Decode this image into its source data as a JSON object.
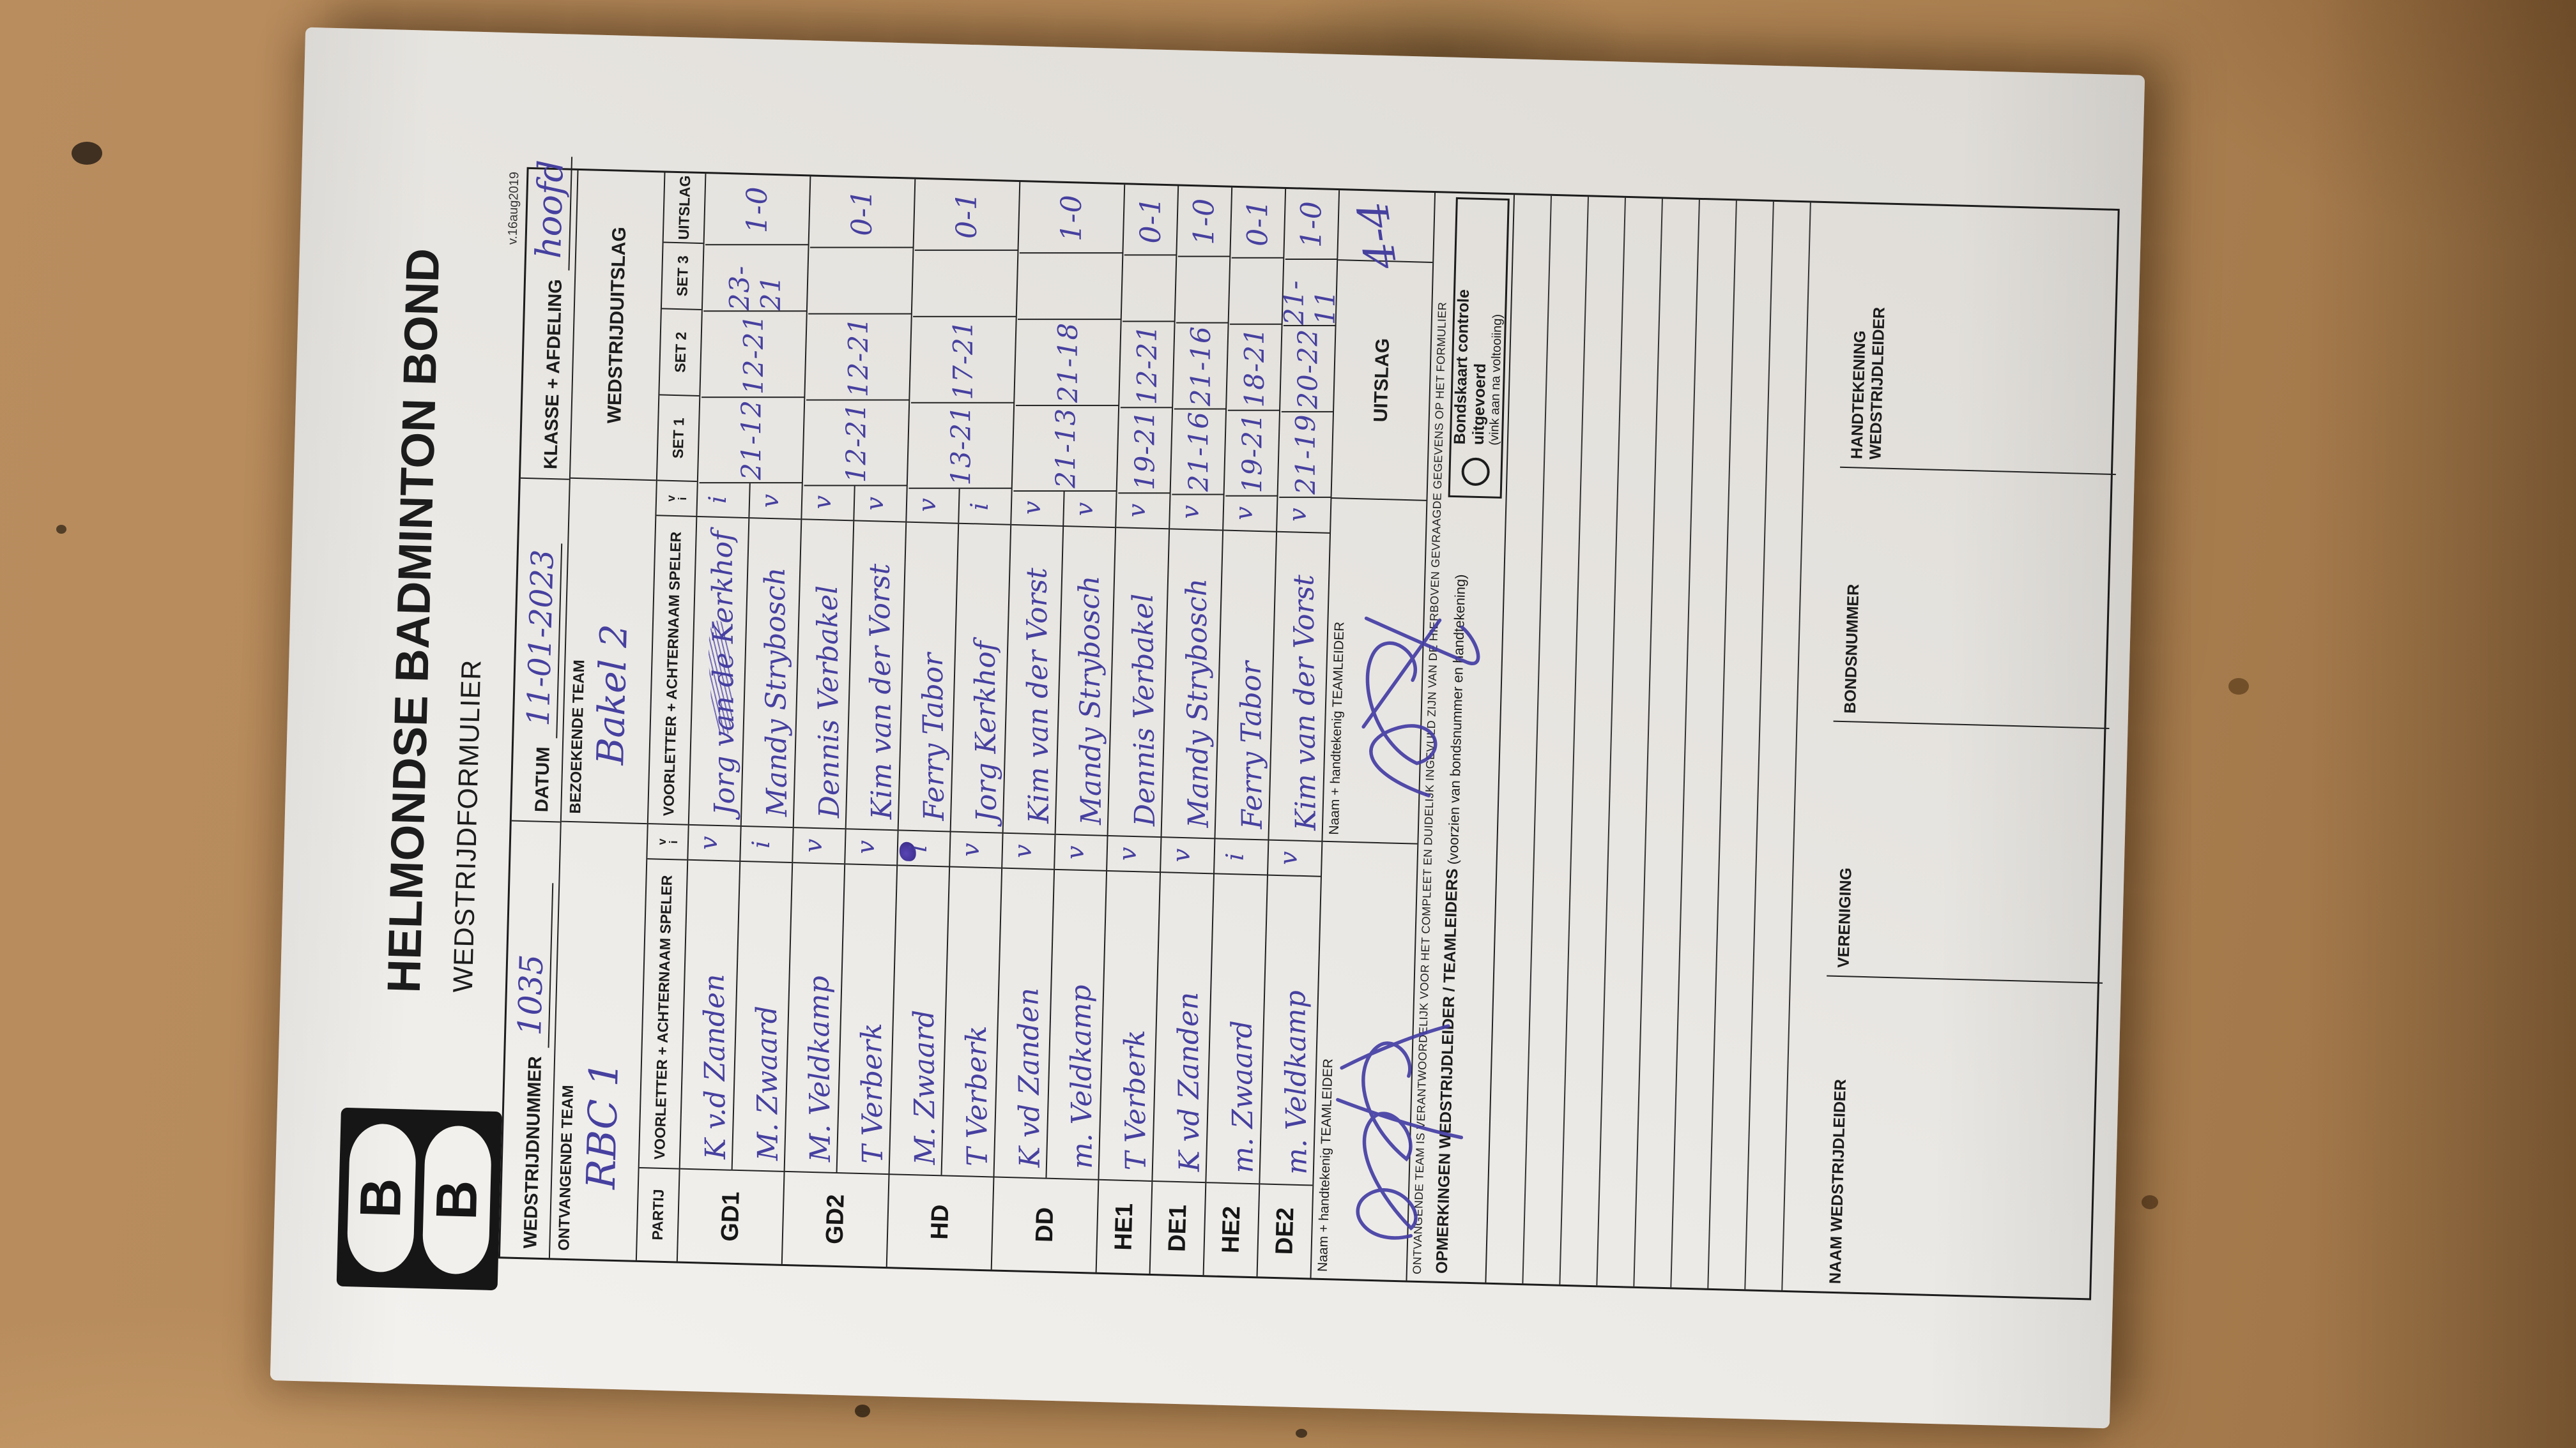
{
  "form": {
    "header": {
      "title": "HELMONDSE BADMINTON BOND",
      "subtitle": "WEDSTRIJDFORMULIER",
      "version": "v.16aug2019",
      "logo_letters": [
        "B",
        "B"
      ]
    },
    "fields": {
      "wedstrijdnummer_label": "WEDSTRIJDNUMMER",
      "wedstrijdnummer_value": "1035",
      "datum_label": "DATUM",
      "datum_value": "11-01-2023",
      "klasse_label": "KLASSE + AFDELING",
      "klasse_value": "hoofd"
    },
    "teams": {
      "home_label": "ONTVANGENDE TEAM",
      "home_value": "RBC 1",
      "away_label": "BEZOEKENDE TEAM",
      "away_value": "Bakel 2",
      "result_header": "WEDSTRIJDUITSLAG"
    },
    "table": {
      "partij_label": "PARTIJ",
      "player_label": "VOORLETTER + ACHTERNAAM SPELER",
      "check_options": [
        "v",
        "i"
      ],
      "set_labels": [
        "SET 1",
        "SET 2",
        "SET 3"
      ],
      "uitslag_label": "UITSLAG",
      "rows": [
        {
          "partij": "GD1",
          "home": [
            {
              "name": "K v.d Zanden",
              "check": "v"
            },
            {
              "name": "M. Zwaard",
              "check": "i"
            }
          ],
          "guest": [
            {
              "name": "Jorg van de Kerkhof",
              "check": "i",
              "corrected": true
            },
            {
              "name": "Mandy Strybosch",
              "check": "v"
            }
          ],
          "sets": [
            "21-12",
            "12-21",
            "23-21"
          ],
          "uitslag": "1-0"
        },
        {
          "partij": "GD2",
          "home": [
            {
              "name": "M. Veldkamp",
              "check": "v"
            },
            {
              "name": "T Verberk",
              "check": "v"
            }
          ],
          "guest": [
            {
              "name": "Dennis Verbakel",
              "check": "v"
            },
            {
              "name": "Kim van der Vorst",
              "check": "v"
            }
          ],
          "sets": [
            "12-21",
            "12-21",
            ""
          ],
          "uitslag": "0-1"
        },
        {
          "partij": "HD",
          "home": [
            {
              "name": "M. Zwaard",
              "check": "i",
              "blob": true
            },
            {
              "name": "T Verberk",
              "check": "v"
            }
          ],
          "guest": [
            {
              "name": "Ferry Tabor",
              "check": "v"
            },
            {
              "name": "Jorg Kerkhof",
              "check": "i"
            }
          ],
          "sets": [
            "13-21",
            "17-21",
            ""
          ],
          "uitslag": "0-1"
        },
        {
          "partij": "DD",
          "home": [
            {
              "name": "K vd Zanden",
              "check": "v"
            },
            {
              "name": "m. Veldkamp",
              "check": "v"
            }
          ],
          "guest": [
            {
              "name": "Kim van der Vorst",
              "check": "v"
            },
            {
              "name": "Mandy Strybosch",
              "check": "v"
            }
          ],
          "sets": [
            "21-13",
            "21-18",
            ""
          ],
          "uitslag": "1-0"
        },
        {
          "partij": "HE1",
          "home": [
            {
              "name": "T Verberk",
              "check": "v"
            }
          ],
          "guest": [
            {
              "name": "Dennis Verbakel",
              "check": "v"
            }
          ],
          "sets": [
            "19-21",
            "12-21",
            ""
          ],
          "uitslag": "0-1"
        },
        {
          "partij": "DE1",
          "home": [
            {
              "name": "K vd Zanden",
              "check": "v"
            }
          ],
          "guest": [
            {
              "name": "Mandy Strybosch",
              "check": "v"
            }
          ],
          "sets": [
            "21-16",
            "21-16",
            ""
          ],
          "uitslag": "1-0"
        },
        {
          "partij": "HE2",
          "home": [
            {
              "name": "m. Zwaard",
              "check": "i"
            }
          ],
          "guest": [
            {
              "name": "Ferry Tabor",
              "check": "v"
            }
          ],
          "sets": [
            "19-21",
            "18-21",
            ""
          ],
          "uitslag": "0-1"
        },
        {
          "partij": "DE2",
          "home": [
            {
              "name": "m. Veldkamp",
              "check": "v"
            }
          ],
          "guest": [
            {
              "name": "Kim van der Vorst",
              "check": "v"
            }
          ],
          "sets": [
            "21-19",
            "20-22",
            "21-11"
          ],
          "uitslag": "1-0"
        }
      ]
    },
    "totals": {
      "uitslag_label": "UITSLAG",
      "value": "4-4"
    },
    "signature_label": "Naam + handtekenig TEAMLEIDER",
    "note": "ONTVANGENDE TEAM IS VERANTWOORDELIJK VOOR HET COMPLEET EN DUIDELIJK INGEVULD ZIJN VAN DE HIERBOVEN GEVRAAGDE GEGEVENS OP HET FORMULIER",
    "remarks": {
      "label_bold": "OPMERKINGEN WEDSTRIJDLEIDER / TEAMLEIDERS",
      "label_normal": "(voorzien van bondsnummer en handtekening)",
      "bondskaart_bold": "Bondskaart controle uitgevoerd",
      "bondskaart_small": "(vink aan na voltooiing)",
      "bondskaart_checkbox": "O"
    },
    "footer": {
      "cells": [
        "NAAM WEDSTRIJDLEIDER",
        "VERENIGING",
        "BONDSNUMMER",
        "HANDTEKENING WEDSTRIJDLEIDER"
      ]
    },
    "colors": {
      "ink": "#46409f",
      "print": "#1c1c1c",
      "paper": "#ebe9e5",
      "desk": "#b28756"
    }
  }
}
